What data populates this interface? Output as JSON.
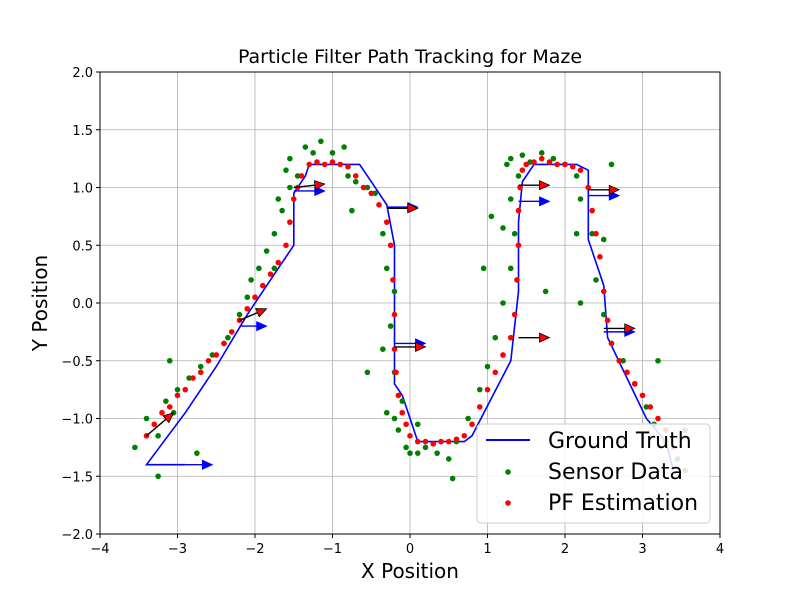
{
  "chart_data": {
    "type": "scatter",
    "title": "Particle Filter Path Tracking for Maze",
    "xlabel": "X Position",
    "ylabel": "Y Position",
    "xlim": [
      -4,
      4
    ],
    "ylim": [
      -2,
      2
    ],
    "xticks": [
      -4,
      -3,
      -2,
      -1,
      0,
      1,
      2,
      3,
      4
    ],
    "xtick_labels": [
      "−4",
      "−3",
      "−2",
      "−1",
      "0",
      "1",
      "2",
      "3",
      "4"
    ],
    "yticks": [
      -2.0,
      -1.5,
      -1.0,
      -0.5,
      0.0,
      0.5,
      1.0,
      1.5,
      2.0
    ],
    "ytick_labels": [
      "−2.0",
      "−1.5",
      "−1.0",
      "−0.5",
      "0.0",
      "0.5",
      "1.0",
      "1.5",
      "2.0"
    ],
    "grid": true,
    "legend_position": "lower-right",
    "series": [
      {
        "name": "Ground Truth",
        "type": "line",
        "color": "#0000ff",
        "x": [
          -2.9,
          -3.4,
          -2.9,
          -2.5,
          -2.1,
          -1.85,
          -1.5,
          -1.5,
          -1.35,
          -1.3,
          -0.65,
          -0.5,
          -0.3,
          -0.2,
          -0.2,
          -0.2,
          -0.2,
          -0.1,
          0.1,
          0.7,
          0.8,
          1.3,
          1.4,
          1.4,
          1.45,
          1.6,
          1.8,
          2.15,
          2.3,
          2.3,
          2.5,
          2.55,
          2.8,
          3.05,
          3.3,
          3.4
        ],
        "y": [
          -1.4,
          -1.4,
          -0.95,
          -0.55,
          -0.1,
          0.15,
          0.5,
          0.95,
          1.1,
          1.2,
          1.2,
          1.05,
          0.85,
          0.5,
          -0.1,
          -0.5,
          -0.7,
          -0.8,
          -1.2,
          -1.2,
          -1.15,
          -0.5,
          0.1,
          0.7,
          1.05,
          1.2,
          1.2,
          1.2,
          1.15,
          0.55,
          0.15,
          -0.3,
          -0.65,
          -1.0,
          -1.2,
          -1.45
        ]
      },
      {
        "name": "Sensor Data",
        "type": "scatter",
        "color": "#008000",
        "x": [
          -3.55,
          -3.4,
          -3.25,
          -3.15,
          -3.05,
          -3.0,
          -2.85,
          -2.7,
          -2.55,
          -2.35,
          -2.2,
          -2.1,
          -2.05,
          -1.95,
          -1.85,
          -1.75,
          -1.65,
          -1.55,
          -1.6,
          -1.7,
          -1.55,
          -1.45,
          -1.35,
          -1.25,
          -1.15,
          -1.0,
          -0.85,
          -0.8,
          -0.7,
          -0.55,
          -0.45,
          -0.35,
          -0.3,
          -0.2,
          -0.25,
          -0.35,
          -0.2,
          -0.1,
          -0.2,
          -0.3,
          -0.15,
          -0.05,
          0.0,
          0.1,
          0.2,
          0.35,
          0.5,
          0.6,
          0.75,
          0.9,
          1.0,
          1.1,
          1.2,
          1.3,
          1.35,
          1.3,
          1.4,
          1.25,
          1.3,
          1.45,
          1.55,
          1.7,
          1.85,
          2.0,
          2.15,
          2.2,
          2.35,
          2.4,
          2.5,
          2.6,
          2.75,
          2.9,
          3.05,
          3.15,
          3.3,
          3.45,
          3.55,
          2.15,
          2.5,
          2.2,
          1.75,
          1.05,
          0.95,
          -2.75,
          -3.25,
          -3.1,
          -2.4,
          -1.75,
          -0.55,
          -0.75,
          0.55,
          0.1,
          1.2,
          2.6,
          3.2,
          3.55
        ],
        "y": [
          -1.25,
          -1.0,
          -1.15,
          -0.85,
          -0.95,
          -0.75,
          -0.65,
          -0.55,
          -0.45,
          -0.3,
          -0.1,
          0.05,
          0.2,
          0.3,
          0.45,
          0.6,
          0.8,
          1.0,
          1.15,
          0.9,
          1.25,
          1.1,
          1.35,
          1.3,
          1.4,
          1.3,
          1.35,
          1.1,
          1.05,
          1.0,
          0.95,
          0.6,
          0.3,
          0.1,
          -0.2,
          -0.4,
          -0.6,
          -0.85,
          -1.0,
          -0.95,
          -1.1,
          -1.25,
          -1.3,
          -1.3,
          -1.25,
          -1.3,
          -1.35,
          -1.2,
          -1.0,
          -0.75,
          -0.55,
          -0.3,
          0.0,
          0.3,
          0.6,
          0.9,
          1.1,
          1.2,
          1.25,
          1.28,
          1.22,
          1.3,
          1.25,
          1.2,
          1.1,
          0.9,
          0.6,
          0.2,
          -0.1,
          -0.35,
          -0.5,
          -0.7,
          -0.9,
          -1.05,
          -1.2,
          -1.35,
          -1.45,
          0.6,
          0.55,
          0.0,
          0.1,
          0.75,
          0.3,
          -1.3,
          -1.5,
          -0.5,
          -0.35,
          0.3,
          -0.6,
          0.8,
          -1.52,
          -1.05,
          0.65,
          1.2,
          -0.5,
          -1.1
        ]
      },
      {
        "name": "PF Estimation",
        "type": "scatter",
        "color": "#ff0000",
        "x": [
          -3.4,
          -3.3,
          -3.2,
          -3.1,
          -3.0,
          -2.9,
          -2.8,
          -2.7,
          -2.6,
          -2.5,
          -2.4,
          -2.3,
          -2.2,
          -2.1,
          -2.0,
          -1.9,
          -1.8,
          -1.7,
          -1.6,
          -1.55,
          -1.5,
          -1.45,
          -1.4,
          -1.3,
          -1.2,
          -1.1,
          -1.0,
          -0.9,
          -0.8,
          -0.7,
          -0.6,
          -0.5,
          -0.4,
          -0.3,
          -0.25,
          -0.22,
          -0.2,
          -0.2,
          -0.18,
          -0.15,
          -0.1,
          -0.05,
          0.0,
          0.1,
          0.2,
          0.3,
          0.4,
          0.5,
          0.6,
          0.7,
          0.8,
          0.9,
          1.0,
          1.1,
          1.2,
          1.3,
          1.35,
          1.38,
          1.4,
          1.4,
          1.42,
          1.45,
          1.5,
          1.6,
          1.7,
          1.8,
          1.9,
          2.0,
          2.1,
          2.2,
          2.3,
          2.35,
          2.4,
          2.45,
          2.5,
          2.55,
          2.6,
          2.7,
          2.8,
          2.9,
          3.0,
          3.1,
          3.2,
          3.3,
          3.4
        ],
        "y": [
          -1.15,
          -1.05,
          -0.95,
          -0.9,
          -0.8,
          -0.75,
          -0.65,
          -0.6,
          -0.5,
          -0.45,
          -0.35,
          -0.25,
          -0.15,
          -0.05,
          0.05,
          0.15,
          0.25,
          0.35,
          0.5,
          0.7,
          0.9,
          1.0,
          1.1,
          1.2,
          1.22,
          1.2,
          1.22,
          1.2,
          1.18,
          1.1,
          1.0,
          0.95,
          0.85,
          0.7,
          0.5,
          0.2,
          -0.1,
          -0.4,
          -0.6,
          -0.8,
          -0.95,
          -1.05,
          -1.15,
          -1.2,
          -1.2,
          -1.22,
          -1.2,
          -1.2,
          -1.18,
          -1.15,
          -1.05,
          -0.9,
          -0.75,
          -0.6,
          -0.45,
          -0.3,
          -0.1,
          0.2,
          0.5,
          0.8,
          1.0,
          1.15,
          1.2,
          1.22,
          1.25,
          1.22,
          1.2,
          1.2,
          1.18,
          1.15,
          1.0,
          0.8,
          0.6,
          0.4,
          0.1,
          -0.15,
          -0.35,
          -0.5,
          -0.6,
          -0.7,
          -0.8,
          -0.9,
          -1.0,
          -1.1,
          -1.25
        ]
      }
    ],
    "arrows": {
      "blue": [
        {
          "x": -2.9,
          "y": -1.4,
          "dx": 0.35,
          "dy": 0.0
        },
        {
          "x": -2.2,
          "y": -0.2,
          "dx": 0.35,
          "dy": 0.0
        },
        {
          "x": -1.5,
          "y": 0.97,
          "dx": 0.4,
          "dy": 0.0
        },
        {
          "x": -0.3,
          "y": 0.83,
          "dx": 0.4,
          "dy": 0.0
        },
        {
          "x": -0.2,
          "y": -0.35,
          "dx": 0.4,
          "dy": 0.0
        },
        {
          "x": 1.4,
          "y": 0.88,
          "dx": 0.4,
          "dy": 0.0
        },
        {
          "x": 2.3,
          "y": 0.93,
          "dx": 0.4,
          "dy": 0.0
        },
        {
          "x": 2.5,
          "y": -0.25,
          "dx": 0.4,
          "dy": 0.0
        }
      ],
      "red": [
        {
          "x": -3.4,
          "y": -1.15,
          "dx": 0.35,
          "dy": 0.2
        },
        {
          "x": -2.2,
          "y": -0.15,
          "dx": 0.35,
          "dy": 0.1
        },
        {
          "x": -1.5,
          "y": 1.0,
          "dx": 0.4,
          "dy": 0.03
        },
        {
          "x": -0.3,
          "y": 0.82,
          "dx": 0.4,
          "dy": 0.0
        },
        {
          "x": -0.2,
          "y": -0.38,
          "dx": 0.4,
          "dy": 0.0
        },
        {
          "x": 1.4,
          "y": 1.02,
          "dx": 0.4,
          "dy": 0.0
        },
        {
          "x": 2.3,
          "y": 0.98,
          "dx": 0.4,
          "dy": 0.0
        },
        {
          "x": 2.5,
          "y": -0.22,
          "dx": 0.4,
          "dy": 0.0
        },
        {
          "x": 1.4,
          "y": -0.3,
          "dx": 0.4,
          "dy": 0.0
        }
      ]
    }
  }
}
